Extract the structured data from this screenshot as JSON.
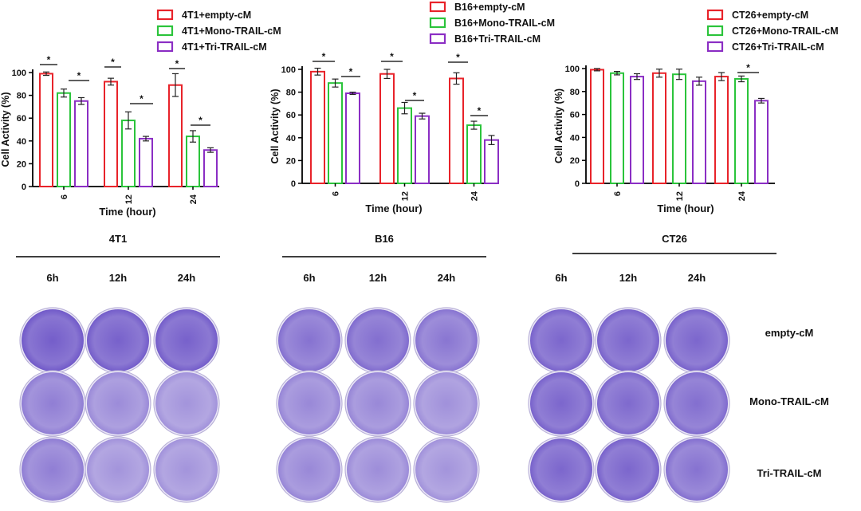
{
  "chart_data": [
    {
      "type": "bar",
      "categories": [
        "6",
        "12",
        "24"
      ],
      "series": [
        {
          "name": "4T1+empty-cM",
          "values": [
            99,
            92,
            89
          ],
          "errors": [
            1.5,
            3,
            10
          ],
          "color": "#e8232a"
        },
        {
          "name": "4T1+Mono-TRAIL-cM",
          "values": [
            82,
            58,
            44
          ],
          "errors": [
            3.5,
            7.5,
            5
          ],
          "color": "#2bc43b"
        },
        {
          "name": "4T1+Tri-TRAIL-cM",
          "values": [
            75,
            42,
            32
          ],
          "errors": [
            3,
            2,
            2
          ],
          "color": "#8b2ec4"
        }
      ],
      "significance": [
        "*",
        "*",
        "*",
        "*",
        "*",
        "*"
      ],
      "xlabel": "Time (hour)",
      "ylabel": "Cell Activity (%)",
      "ylim": [
        0,
        100
      ],
      "yticks": [
        "0",
        "20",
        "40",
        "60",
        "80",
        "100"
      ],
      "title": "4T1"
    },
    {
      "type": "bar",
      "categories": [
        "6",
        "12",
        "24"
      ],
      "series": [
        {
          "name": "B16+empty-cM",
          "values": [
            98,
            96,
            92
          ],
          "errors": [
            3,
            4,
            5
          ],
          "color": "#e8232a"
        },
        {
          "name": "B16+Mono-TRAIL-cM",
          "values": [
            88,
            66,
            51
          ],
          "errors": [
            3.5,
            5,
            3.5
          ],
          "color": "#2bc43b"
        },
        {
          "name": "B16+Tri-TRAIL-cM",
          "values": [
            79,
            59,
            38
          ],
          "errors": [
            1,
            2.5,
            4
          ],
          "color": "#8b2ec4"
        }
      ],
      "significance": [
        "*",
        "*",
        "*",
        "*",
        "*",
        "*"
      ],
      "xlabel": "Time (hour)",
      "ylabel": "Cell Activity (%)",
      "ylim": [
        0,
        100
      ],
      "yticks": [
        "0",
        "20",
        "40",
        "60",
        "80",
        "100"
      ],
      "title": "B16"
    },
    {
      "type": "bar",
      "categories": [
        "6",
        "12",
        "24"
      ],
      "series": [
        {
          "name": "CT26+empty-cM",
          "values": [
            99,
            96,
            93
          ],
          "errors": [
            1,
            3.5,
            3.5
          ],
          "color": "#e8232a"
        },
        {
          "name": "CT26+Mono-TRAIL-cM",
          "values": [
            96,
            95,
            91
          ],
          "errors": [
            1.5,
            4.5,
            2.5
          ],
          "color": "#2bc43b"
        },
        {
          "name": "CT26+Tri-TRAIL-cM",
          "values": [
            93,
            89,
            72
          ],
          "errors": [
            2.5,
            3.5,
            2
          ],
          "color": "#8b2ec4"
        }
      ],
      "significance": [
        "*"
      ],
      "xlabel": "Time (hour)",
      "ylabel": "Cell Activity (%)",
      "ylim": [
        0,
        100
      ],
      "yticks": [
        "0",
        "20",
        "40",
        "60",
        "80",
        "100"
      ],
      "title": "CT26"
    }
  ],
  "plates": {
    "time_labels": [
      "6h",
      "12h",
      "24h"
    ],
    "row_labels": [
      "empty-cM",
      "Mono-TRAIL-cM",
      "Tri-TRAIL-cM"
    ],
    "stain_color": "#5a3fc0",
    "background_color": "#ffffff"
  }
}
